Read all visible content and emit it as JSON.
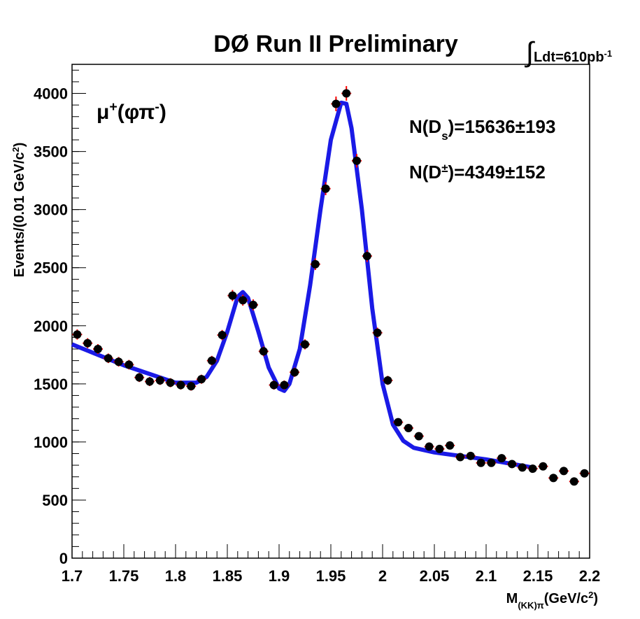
{
  "chart_data": {
    "type": "scatter",
    "title": "DØ Run II Preliminary",
    "luminosity": [
      {
        "text": "∫",
        "shift": "big"
      },
      {
        "text": "Ldt=610pb"
      },
      {
        "text": "-1",
        "shift": "sup"
      }
    ],
    "annotations": [
      {
        "color": "#ff0000",
        "parts": [
          {
            "text": "μ"
          },
          {
            "text": "+",
            "shift": "sup"
          },
          {
            "text": "(φπ"
          },
          {
            "text": "-",
            "shift": "sup"
          },
          {
            "text": ")"
          }
        ]
      },
      {
        "color": "#000000",
        "parts": [
          {
            "text": "N(D"
          },
          {
            "text": "s",
            "shift": "sub"
          },
          {
            "text": ")=15636±193"
          }
        ]
      },
      {
        "color": "#000000",
        "parts": [
          {
            "text": "N(D"
          },
          {
            "text": "±",
            "shift": "sup"
          },
          {
            "text": ")=4349±152"
          }
        ]
      }
    ],
    "xlabel": [
      {
        "text": "M"
      },
      {
        "text": "(KK)π",
        "shift": "sub"
      },
      {
        "text": "(GeV/c"
      },
      {
        "text": "2",
        "shift": "sup"
      },
      {
        "text": ")"
      }
    ],
    "ylabel": [
      {
        "text": "Events/(0.01 GeV/c"
      },
      {
        "text": "2",
        "shift": "sup"
      },
      {
        "text": ")"
      }
    ],
    "xlim": [
      1.7,
      2.2
    ],
    "ylim": [
      0,
      4250
    ],
    "xticks": [
      1.7,
      1.75,
      1.8,
      1.85,
      1.9,
      1.95,
      2,
      2.05,
      2.1,
      2.15,
      2.2
    ],
    "yticks": [
      0,
      500,
      1000,
      1500,
      2000,
      2500,
      3000,
      3500,
      4000
    ],
    "points": {
      "color": "#000000",
      "error_color": "#ff0000",
      "x": [
        1.705,
        1.715,
        1.725,
        1.735,
        1.745,
        1.755,
        1.765,
        1.775,
        1.785,
        1.795,
        1.805,
        1.815,
        1.825,
        1.835,
        1.845,
        1.855,
        1.865,
        1.875,
        1.885,
        1.895,
        1.905,
        1.915,
        1.925,
        1.935,
        1.945,
        1.955,
        1.965,
        1.975,
        1.985,
        1.995,
        2.005,
        2.015,
        2.025,
        2.035,
        2.045,
        2.055,
        2.065,
        2.075,
        2.085,
        2.095,
        2.105,
        2.115,
        2.125,
        2.135,
        2.145,
        2.155,
        2.165,
        2.175,
        2.185,
        2.195
      ],
      "values": [
        1925,
        1850,
        1800,
        1720,
        1690,
        1665,
        1555,
        1520,
        1530,
        1510,
        1490,
        1480,
        1540,
        1700,
        1920,
        2260,
        2220,
        2180,
        1780,
        1490,
        1490,
        1600,
        1840,
        2530,
        3180,
        3910,
        4000,
        3420,
        2600,
        1940,
        1530,
        1170,
        1120,
        1050,
        960,
        940,
        970,
        870,
        880,
        820,
        820,
        860,
        810,
        780,
        770,
        790,
        690,
        750,
        660,
        730
      ],
      "errors": [
        44,
        43,
        42,
        41,
        41,
        41,
        39,
        39,
        39,
        39,
        39,
        38,
        39,
        41,
        44,
        48,
        47,
        47,
        42,
        39,
        39,
        40,
        43,
        50,
        56,
        63,
        63,
        58,
        51,
        44,
        39,
        34,
        33,
        32,
        31,
        31,
        31,
        29,
        30,
        29,
        29,
        29,
        28,
        28,
        28,
        28,
        26,
        27,
        26,
        27
      ]
    },
    "fit": {
      "color": "#1a1ae6",
      "x": [
        1.7,
        1.75,
        1.8,
        1.82,
        1.83,
        1.84,
        1.85,
        1.86,
        1.865,
        1.87,
        1.88,
        1.89,
        1.9,
        1.905,
        1.91,
        1.92,
        1.93,
        1.94,
        1.95,
        1.96,
        1.965,
        1.97,
        1.98,
        1.99,
        2.0,
        2.01,
        2.02,
        2.03,
        2.05,
        2.1,
        2.145
      ],
      "values": [
        1840,
        1660,
        1510,
        1510,
        1560,
        1700,
        1950,
        2250,
        2290,
        2240,
        1950,
        1640,
        1460,
        1440,
        1500,
        1800,
        2350,
        3000,
        3600,
        3920,
        3910,
        3700,
        3000,
        2150,
        1500,
        1150,
        1010,
        950,
        910,
        850,
        780
      ]
    }
  }
}
